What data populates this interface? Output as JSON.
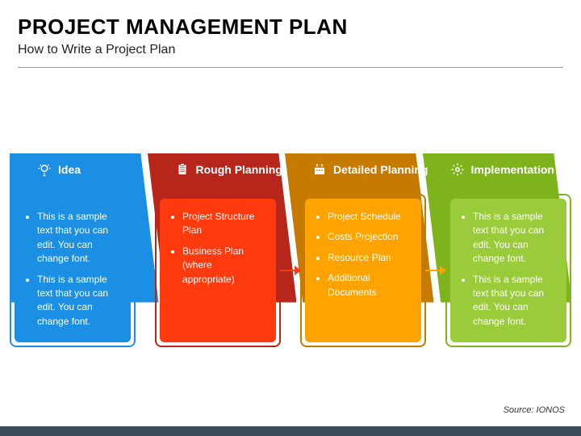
{
  "title": "PROJECT MANAGEMENT PLAN",
  "subtitle": "How to Write a Project Plan",
  "source_label": "Source: IONOS",
  "footer_bar_color": "#3b4b57",
  "background_color": "#ffffff",
  "arrow_width": 26,
  "stages": [
    {
      "label": "Idea",
      "icon": "lightbulb-icon",
      "tab_color": "#1b8fe4",
      "border_color": "#1b8fe4",
      "fill_color": "#1b8fe4",
      "arrow_color": "#1b8fe4",
      "bullets": [
        "This is a sample text that you can edit. You can change font.",
        "This is a sample text that you can edit. You can change font."
      ]
    },
    {
      "label": "Rough Planning",
      "icon": "clipboard-icon",
      "tab_color": "#b6261a",
      "border_color": "#b6261a",
      "fill_color": "#ff3a0f",
      "arrow_color": "#ff3a0f",
      "bullets": [
        "Project Structure Plan",
        "Business Plan (where appropriate)"
      ]
    },
    {
      "label": "Detailed Planning",
      "icon": "calendar-icon",
      "tab_color": "#c67a00",
      "border_color": "#c67a00",
      "fill_color": "#ffa300",
      "arrow_color": "#ffa300",
      "bullets": [
        "Project Schedule",
        "Costs Projection",
        "Resource Plan",
        "Additional Documents"
      ]
    },
    {
      "label": "Implementation",
      "icon": "gear-icon",
      "tab_color": "#7fb31c",
      "border_color": "#7fb31c",
      "fill_color": "#9acb3a",
      "arrow_color": "#9acb3a",
      "bullets": [
        "This is a sample text that you can edit. You can change font.",
        "This is a sample text that you can edit. You can change font."
      ]
    }
  ]
}
